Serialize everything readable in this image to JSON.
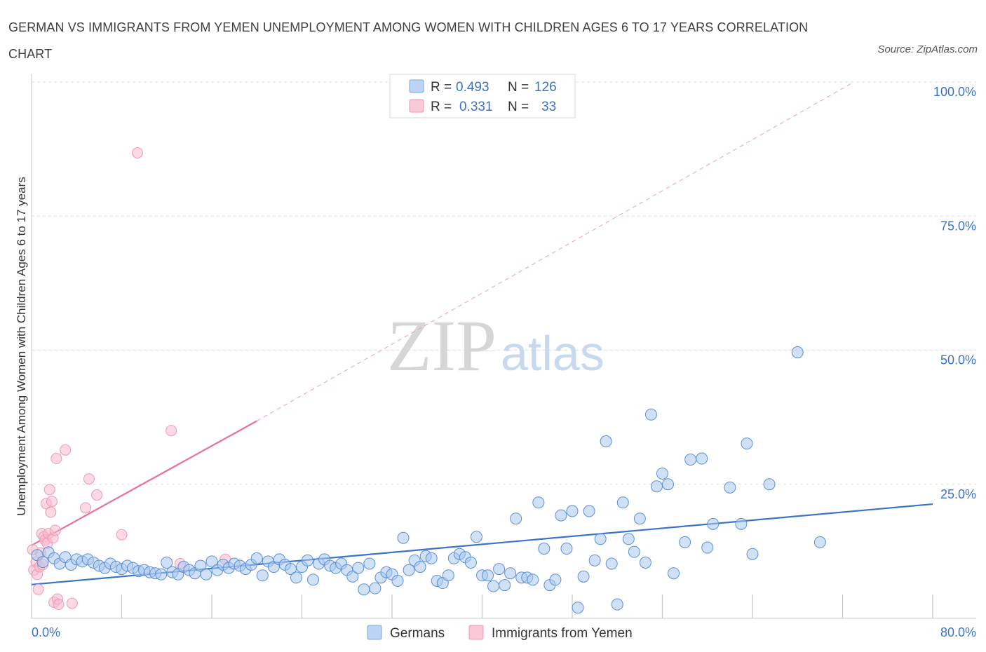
{
  "title": "GERMAN VS IMMIGRANTS FROM YEMEN UNEMPLOYMENT AMONG WOMEN WITH CHILDREN AGES 6 TO 17 YEARS CORRELATION CHART",
  "source": "Source: ZipAtlas.com",
  "watermark": {
    "zip": "ZIP",
    "atlas": "atlas"
  },
  "legend": {
    "r_label": "R =",
    "n_label": "N =",
    "germans": {
      "r": "0.493",
      "n": "126"
    },
    "yemen": {
      "r": "0.331",
      "n": "33"
    }
  },
  "bottom_legend": {
    "germans": "Germans",
    "yemen": "Immigrants from Yemen"
  },
  "colors": {
    "blue": "#3b73c9",
    "blue_fill": "#aac8ef",
    "pink": "#e8709a",
    "pink_fill": "#f7b9cc"
  },
  "chart_data": {
    "type": "scatter",
    "title": "GERMAN VS IMMIGRANTS FROM YEMEN UNEMPLOYMENT AMONG WOMEN WITH CHILDREN AGES 6 TO 17 YEARS CORRELATION CHART",
    "xlabel": "",
    "ylabel": "Unemployment Among Women with Children Ages 6 to 17 years",
    "xlim": [
      0,
      80
    ],
    "ylim": [
      0,
      100
    ],
    "x_ticks": [
      0,
      80
    ],
    "x_tick_labels": [
      "0.0%",
      "80.0%"
    ],
    "y_ticks": [
      25,
      50,
      75,
      100
    ],
    "y_tick_labels": [
      "25.0%",
      "50.0%",
      "75.0%",
      "100.0%"
    ],
    "grid": true,
    "series": [
      {
        "name": "Germans",
        "color": "#3b73c9",
        "r": 0.493,
        "n": 126,
        "trend": {
          "x": [
            0,
            80
          ],
          "y": [
            6.3,
            21.3
          ]
        },
        "points": [
          [
            0.5,
            11.8
          ],
          [
            1,
            10.5
          ],
          [
            1.5,
            12.3
          ],
          [
            2,
            11.2
          ],
          [
            2.5,
            10.2
          ],
          [
            3,
            11.4
          ],
          [
            3.5,
            10.0
          ],
          [
            4,
            11.0
          ],
          [
            4.5,
            10.6
          ],
          [
            5,
            11.0
          ],
          [
            5.5,
            10.4
          ],
          [
            6,
            9.8
          ],
          [
            6.5,
            9.4
          ],
          [
            7,
            10.2
          ],
          [
            7.5,
            9.6
          ],
          [
            8,
            9.2
          ],
          [
            8.5,
            9.8
          ],
          [
            9,
            9.4
          ],
          [
            9.5,
            8.8
          ],
          [
            10,
            9.0
          ],
          [
            10.5,
            8.6
          ],
          [
            11,
            8.4
          ],
          [
            11.5,
            8.2
          ],
          [
            12,
            10.4
          ],
          [
            12.5,
            8.6
          ],
          [
            13,
            8.2
          ],
          [
            13.5,
            9.6
          ],
          [
            14,
            9.0
          ],
          [
            14.5,
            8.4
          ],
          [
            15,
            9.8
          ],
          [
            15.5,
            8.2
          ],
          [
            16,
            10.6
          ],
          [
            16.5,
            9.0
          ],
          [
            17,
            10.0
          ],
          [
            17.5,
            9.4
          ],
          [
            18,
            10.2
          ],
          [
            18.5,
            9.8
          ],
          [
            19,
            9.2
          ],
          [
            19.5,
            10.0
          ],
          [
            20,
            11.2
          ],
          [
            20.5,
            8.0
          ],
          [
            21,
            10.6
          ],
          [
            21.5,
            9.6
          ],
          [
            22,
            11.0
          ],
          [
            22.5,
            10.0
          ],
          [
            23,
            9.2
          ],
          [
            23.5,
            7.6
          ],
          [
            24,
            9.6
          ],
          [
            24.5,
            10.8
          ],
          [
            25,
            7.2
          ],
          [
            25.5,
            10.2
          ],
          [
            26,
            11.0
          ],
          [
            26.5,
            9.8
          ],
          [
            27,
            9.4
          ],
          [
            27.5,
            10.2
          ],
          [
            28,
            9.0
          ],
          [
            28.5,
            7.8
          ],
          [
            29,
            9.4
          ],
          [
            29.5,
            5.4
          ],
          [
            30,
            10.2
          ],
          [
            30.5,
            5.6
          ],
          [
            31,
            7.6
          ],
          [
            31.5,
            8.6
          ],
          [
            32,
            8.2
          ],
          [
            32.5,
            7.0
          ],
          [
            33,
            15.0
          ],
          [
            33.5,
            9.0
          ],
          [
            34,
            10.8
          ],
          [
            34.5,
            9.6
          ],
          [
            35,
            11.6
          ],
          [
            35.5,
            11.2
          ],
          [
            36,
            7.0
          ],
          [
            36.5,
            6.6
          ],
          [
            37,
            8.0
          ],
          [
            37.5,
            11.2
          ],
          [
            38,
            12.0
          ],
          [
            38.5,
            11.4
          ],
          [
            39,
            10.4
          ],
          [
            39.5,
            15.2
          ],
          [
            40,
            8.0
          ],
          [
            40.5,
            8.0
          ],
          [
            41,
            6.0
          ],
          [
            41.5,
            9.2
          ],
          [
            42,
            6.2
          ],
          [
            42.5,
            8.4
          ],
          [
            43,
            18.6
          ],
          [
            43.5,
            7.6
          ],
          [
            44,
            7.6
          ],
          [
            44.5,
            7.2
          ],
          [
            45,
            21.6
          ],
          [
            45.5,
            13.0
          ],
          [
            46,
            6.2
          ],
          [
            46.5,
            7.2
          ],
          [
            47,
            19.2
          ],
          [
            47.5,
            13.0
          ],
          [
            48,
            20.0
          ],
          [
            48.5,
            2.0
          ],
          [
            49,
            7.8
          ],
          [
            49.5,
            20.0
          ],
          [
            50,
            10.8
          ],
          [
            50.5,
            14.8
          ],
          [
            51,
            33.0
          ],
          [
            51.5,
            10.2
          ],
          [
            52,
            2.6
          ],
          [
            52.5,
            21.6
          ],
          [
            53,
            14.8
          ],
          [
            53.5,
            12.4
          ],
          [
            54,
            18.6
          ],
          [
            54.5,
            10.4
          ],
          [
            55,
            38.0
          ],
          [
            55.5,
            24.6
          ],
          [
            56,
            27.0
          ],
          [
            56.5,
            25.0
          ],
          [
            57,
            8.4
          ],
          [
            58,
            14.2
          ],
          [
            58.5,
            29.6
          ],
          [
            59.5,
            29.8
          ],
          [
            60.5,
            17.6
          ],
          [
            62,
            24.4
          ],
          [
            63,
            17.6
          ],
          [
            63.5,
            32.6
          ],
          [
            64,
            12.0
          ],
          [
            65.5,
            25.0
          ],
          [
            68,
            49.6
          ],
          [
            70,
            14.2
          ],
          [
            60,
            13.2
          ]
        ]
      },
      {
        "name": "Immigrants from Yemen",
        "color": "#e8709a",
        "r": 0.331,
        "n": 33,
        "trend": {
          "x": [
            0,
            20
          ],
          "y": [
            13.6,
            36.8
          ],
          "dashed_to": {
            "x": 73,
            "y": 100
          }
        },
        "points": [
          [
            0.2,
            9.0
          ],
          [
            0.4,
            10.5
          ],
          [
            0.5,
            8.2
          ],
          [
            0.6,
            5.4
          ],
          [
            0.7,
            9.6
          ],
          [
            0.8,
            12.2
          ],
          [
            0.9,
            15.8
          ],
          [
            1.0,
            10.0
          ],
          [
            1.1,
            15.2
          ],
          [
            1.2,
            14.6
          ],
          [
            1.3,
            21.4
          ],
          [
            1.4,
            14.0
          ],
          [
            1.5,
            15.8
          ],
          [
            1.6,
            24.0
          ],
          [
            1.7,
            19.8
          ],
          [
            1.8,
            21.8
          ],
          [
            1.9,
            15.0
          ],
          [
            2.0,
            3.0
          ],
          [
            2.1,
            16.4
          ],
          [
            2.2,
            29.8
          ],
          [
            2.3,
            3.6
          ],
          [
            2.4,
            2.6
          ],
          [
            3.0,
            31.4
          ],
          [
            3.6,
            2.8
          ],
          [
            4.8,
            20.6
          ],
          [
            5.1,
            26.0
          ],
          [
            5.8,
            23.0
          ],
          [
            8.0,
            15.6
          ],
          [
            9.4,
            86.8
          ],
          [
            12.4,
            35.0
          ],
          [
            13.2,
            10.2
          ],
          [
            17.2,
            11.0
          ],
          [
            0.1,
            12.8
          ]
        ]
      }
    ]
  }
}
